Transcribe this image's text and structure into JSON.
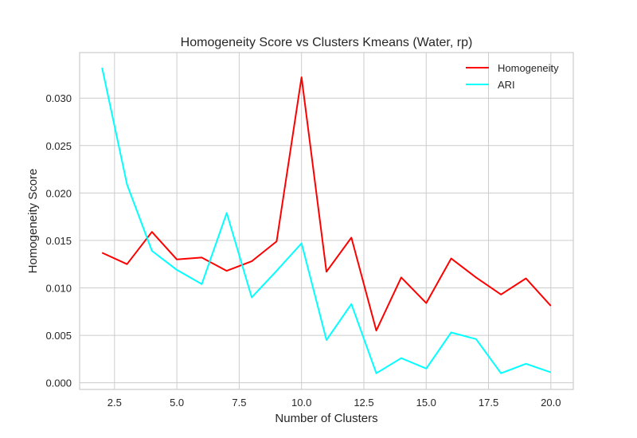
{
  "chart_data": {
    "type": "line",
    "title": "Homogeneity Score vs Clusters Kmeans (Water, rp)",
    "xlabel": "Number of Clusters",
    "ylabel": "Homogeneity Score",
    "xlim": [
      1.1,
      20.9
    ],
    "ylim": [
      -0.0007,
      0.0348
    ],
    "xticks": [
      2.5,
      5.0,
      7.5,
      10.0,
      12.5,
      15.0,
      17.5,
      20.0
    ],
    "xtick_labels": [
      "2.5",
      "5.0",
      "7.5",
      "10.0",
      "12.5",
      "15.0",
      "17.5",
      "20.0"
    ],
    "yticks": [
      0.0,
      0.005,
      0.01,
      0.015,
      0.02,
      0.025,
      0.03
    ],
    "ytick_labels": [
      "0.000",
      "0.005",
      "0.010",
      "0.015",
      "0.020",
      "0.025",
      "0.030"
    ],
    "grid": true,
    "legend_position": "top-right",
    "x": [
      2,
      3,
      4,
      5,
      6,
      7,
      8,
      9,
      10,
      11,
      12,
      13,
      14,
      15,
      16,
      17,
      18,
      19,
      20
    ],
    "series": [
      {
        "name": "Homogeneity",
        "color": "#ff0000",
        "values": [
          0.0137,
          0.0125,
          0.0159,
          0.013,
          0.0132,
          0.0118,
          0.0128,
          0.0149,
          0.0322,
          0.0117,
          0.0153,
          0.0055,
          0.0111,
          0.0084,
          0.0131,
          0.0111,
          0.0093,
          0.011,
          0.0081
        ]
      },
      {
        "name": "ARI",
        "color": "#00ffff",
        "values": [
          0.0332,
          0.0209,
          0.0139,
          0.0119,
          0.0104,
          0.0179,
          0.009,
          0.0118,
          0.0147,
          0.0045,
          0.0083,
          0.001,
          0.0026,
          0.0015,
          0.0053,
          0.0046,
          0.001,
          0.002,
          0.0011
        ]
      }
    ]
  }
}
